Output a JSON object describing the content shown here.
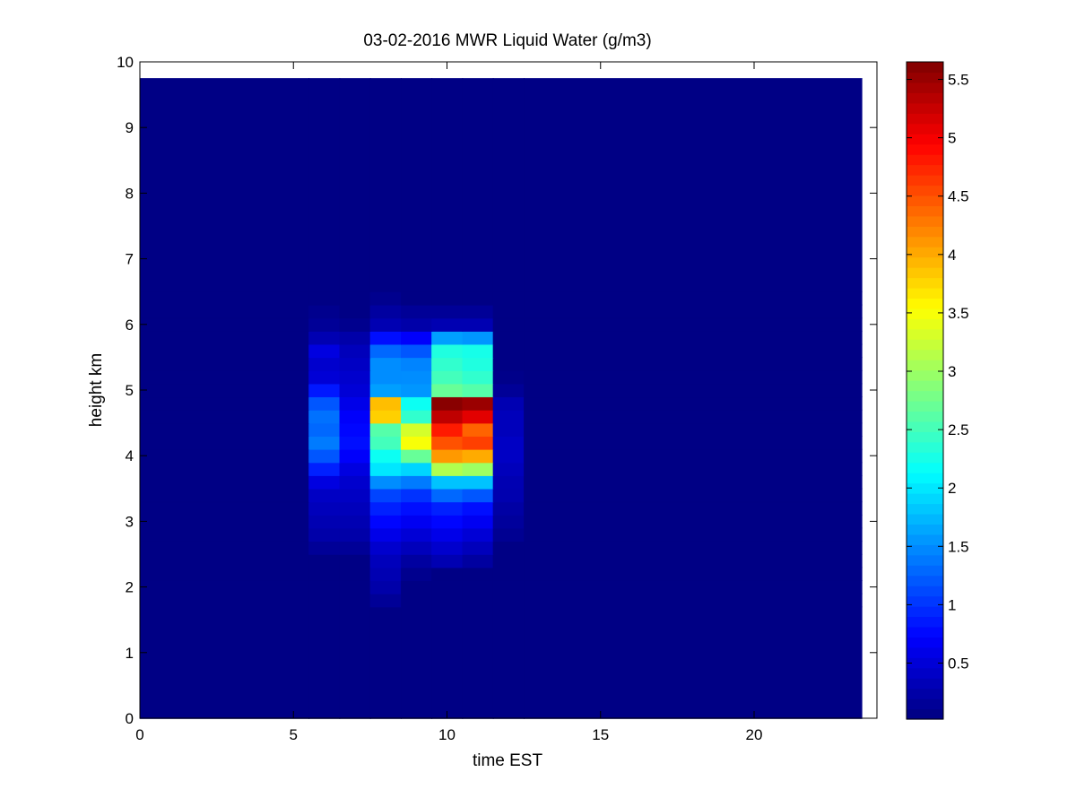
{
  "chart_data": {
    "type": "heatmap",
    "title": "03-02-2016 MWR Liquid Water (g/m3)",
    "xlabel": "time EST",
    "ylabel": "height km",
    "xlim": [
      0,
      24
    ],
    "ylim": [
      0,
      10
    ],
    "xticks": [
      0,
      5,
      10,
      15,
      20
    ],
    "yticks": [
      0,
      1,
      2,
      3,
      4,
      5,
      6,
      7,
      8,
      9,
      10
    ],
    "colorbar": {
      "colormap": "jet",
      "range": [
        0.02,
        5.65
      ],
      "ticks": [
        0.5,
        1,
        1.5,
        2,
        2.5,
        3,
        3.5,
        4,
        4.5,
        5,
        5.5
      ]
    },
    "grid": false,
    "x_cell_edges": [
      0,
      5.5,
      6.5,
      7.5,
      8.5,
      9.5,
      10.5,
      11.5,
      12.5,
      23.5
    ],
    "y_cell_edges": [
      0,
      1.7,
      1.9,
      2.1,
      2.3,
      2.5,
      2.7,
      2.9,
      3.1,
      3.3,
      3.5,
      3.7,
      3.9,
      4.1,
      4.3,
      4.5,
      4.7,
      4.9,
      5.1,
      5.3,
      5.5,
      5.7,
      5.9,
      6.1,
      6.3,
      6.5,
      9.75
    ],
    "values": [
      [
        0.05,
        0.05,
        0.05,
        0.05,
        0.05,
        0.05,
        0.05,
        0.05,
        0.05
      ],
      [
        0.05,
        0.05,
        0.05,
        0.15,
        0.05,
        0.05,
        0.05,
        0.05,
        0.05
      ],
      [
        0.05,
        0.05,
        0.05,
        0.25,
        0.05,
        0.05,
        0.05,
        0.05,
        0.05
      ],
      [
        0.05,
        0.05,
        0.05,
        0.3,
        0.1,
        0.05,
        0.05,
        0.05,
        0.05
      ],
      [
        0.05,
        0.05,
        0.05,
        0.35,
        0.2,
        0.3,
        0.2,
        0.05,
        0.05
      ],
      [
        0.05,
        0.15,
        0.15,
        0.45,
        0.35,
        0.45,
        0.35,
        0.05,
        0.05
      ],
      [
        0.05,
        0.25,
        0.25,
        0.6,
        0.5,
        0.6,
        0.5,
        0.12,
        0.05
      ],
      [
        0.05,
        0.3,
        0.3,
        0.75,
        0.65,
        0.75,
        0.65,
        0.18,
        0.05
      ],
      [
        0.05,
        0.35,
        0.35,
        0.9,
        0.8,
        0.9,
        0.8,
        0.22,
        0.05
      ],
      [
        0.05,
        0.4,
        0.4,
        1.1,
        1.0,
        1.3,
        1.2,
        0.28,
        0.05
      ],
      [
        0.05,
        0.55,
        0.45,
        1.5,
        1.4,
        1.8,
        1.8,
        0.3,
        0.05
      ],
      [
        0.05,
        0.9,
        0.55,
        2.0,
        1.9,
        3.1,
        3.0,
        0.35,
        0.05
      ],
      [
        0.05,
        1.2,
        0.7,
        2.2,
        2.7,
        4.1,
        4.0,
        0.4,
        0.05
      ],
      [
        0.05,
        1.4,
        0.8,
        2.5,
        3.5,
        4.5,
        4.6,
        0.4,
        0.05
      ],
      [
        0.05,
        1.3,
        0.75,
        2.6,
        3.3,
        4.8,
        4.4,
        0.35,
        0.05
      ],
      [
        0.05,
        1.35,
        0.7,
        3.8,
        2.4,
        5.3,
        5.1,
        0.35,
        0.05
      ],
      [
        0.05,
        1.2,
        0.6,
        3.9,
        2.2,
        5.6,
        5.5,
        0.3,
        0.05
      ],
      [
        0.05,
        0.85,
        0.5,
        1.6,
        1.55,
        2.7,
        2.6,
        0.15,
        0.05
      ],
      [
        0.05,
        0.5,
        0.45,
        1.5,
        1.5,
        2.5,
        2.4,
        0.08,
        0.05
      ],
      [
        0.05,
        0.45,
        0.4,
        1.5,
        1.45,
        2.4,
        2.3,
        0.05,
        0.05
      ],
      [
        0.05,
        0.55,
        0.35,
        1.3,
        1.2,
        2.3,
        2.25,
        0.05,
        0.05
      ],
      [
        0.05,
        0.3,
        0.25,
        0.8,
        0.7,
        1.6,
        1.55,
        0.05,
        0.05
      ],
      [
        0.05,
        0.15,
        0.1,
        0.3,
        0.25,
        0.3,
        0.3,
        0.05,
        0.05
      ],
      [
        0.05,
        0.1,
        0.05,
        0.2,
        0.15,
        0.15,
        0.15,
        0.05,
        0.05
      ],
      [
        0.05,
        0.05,
        0.05,
        0.1,
        0.05,
        0.05,
        0.05,
        0.05,
        0.05
      ],
      [
        0.05,
        0.05,
        0.05,
        0.05,
        0.05,
        0.05,
        0.05,
        0.05,
        0.05
      ]
    ]
  }
}
